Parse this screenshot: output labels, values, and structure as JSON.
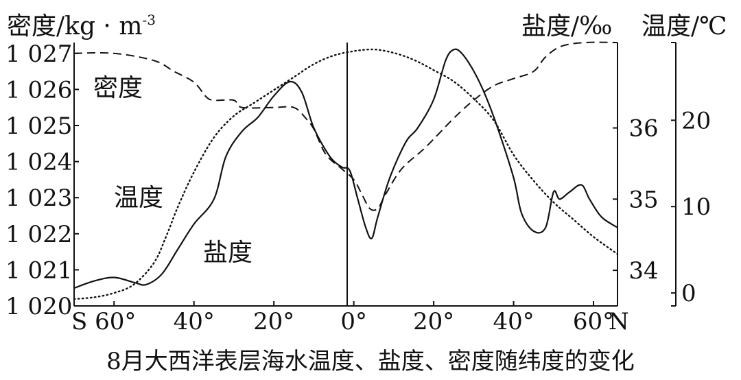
{
  "chart_data": {
    "type": "line",
    "title": "8月大西洋表层海水温度、盐度、密度随纬度的变化",
    "x_axis": {
      "ticks": [
        {
          "value": -60,
          "label": "S 60°"
        },
        {
          "value": -40,
          "label": "40°"
        },
        {
          "value": -20,
          "label": "20°"
        },
        {
          "value": 0,
          "label": "0°"
        },
        {
          "value": 20,
          "label": "20°"
        },
        {
          "value": 40,
          "label": "40°"
        },
        {
          "value": 60,
          "label": "60°"
        }
      ],
      "end_label": "N",
      "range": [
        -70,
        66
      ]
    },
    "axes": {
      "density": {
        "label": "密度/kg · m",
        "label_exp": "-3",
        "range": [
          1020,
          1027.3
        ],
        "ticks": [
          {
            "value": 1027,
            "label": "1 027"
          },
          {
            "value": 1026,
            "label": "1 026"
          },
          {
            "value": 1025,
            "label": "1 025"
          },
          {
            "value": 1024,
            "label": "1 024"
          },
          {
            "value": 1023,
            "label": "1 023"
          },
          {
            "value": 1022,
            "label": "1 022"
          },
          {
            "value": 1021,
            "label": "1 021"
          },
          {
            "value": 1020,
            "label": "1 020"
          }
        ]
      },
      "salinity": {
        "label": "盐度/‰",
        "range": [
          33.5,
          37.2
        ],
        "ticks": [
          {
            "value": 36,
            "label": "36"
          },
          {
            "value": 35,
            "label": "35"
          },
          {
            "value": 34,
            "label": "34"
          }
        ]
      },
      "temperature": {
        "label": "温度/℃",
        "range": [
          -1.5,
          29
        ],
        "ticks": [
          {
            "value": 20,
            "label": "20"
          },
          {
            "value": 10,
            "label": "10"
          },
          {
            "value": 0,
            "label": "0"
          }
        ]
      }
    },
    "series": [
      {
        "name": "密度",
        "axis": "density",
        "style": "dashed",
        "points": [
          [
            -70,
            1027.0
          ],
          [
            -60,
            1027.0
          ],
          [
            -50,
            1026.8
          ],
          [
            -45,
            1026.5
          ],
          [
            -40,
            1026.2
          ],
          [
            -37,
            1025.8
          ],
          [
            -35,
            1025.7
          ],
          [
            -30,
            1025.7
          ],
          [
            -28,
            1025.5
          ],
          [
            -20,
            1025.5
          ],
          [
            -15,
            1025.5
          ],
          [
            -12,
            1025.2
          ],
          [
            -10,
            1024.9
          ],
          [
            -7,
            1024.2
          ],
          [
            -3,
            1023.8
          ],
          [
            0,
            1023.5
          ],
          [
            2,
            1023.1
          ],
          [
            4,
            1022.7
          ],
          [
            6,
            1022.7
          ],
          [
            8,
            1023.1
          ],
          [
            12,
            1023.8
          ],
          [
            18,
            1024.4
          ],
          [
            25,
            1025.2
          ],
          [
            30,
            1025.7
          ],
          [
            35,
            1026.1
          ],
          [
            40,
            1026.3
          ],
          [
            45,
            1026.5
          ],
          [
            48,
            1026.9
          ],
          [
            52,
            1027.2
          ],
          [
            58,
            1027.3
          ],
          [
            66,
            1027.3
          ]
        ]
      },
      {
        "name": "盐度",
        "axis": "salinity",
        "style": "solid",
        "points": [
          [
            -70,
            33.75
          ],
          [
            -65,
            33.85
          ],
          [
            -60,
            33.9
          ],
          [
            -55,
            33.83
          ],
          [
            -52,
            33.8
          ],
          [
            -48,
            33.95
          ],
          [
            -44,
            34.3
          ],
          [
            -40,
            34.65
          ],
          [
            -35,
            35.0
          ],
          [
            -32,
            35.6
          ],
          [
            -28,
            35.95
          ],
          [
            -24,
            36.15
          ],
          [
            -20,
            36.45
          ],
          [
            -16,
            36.65
          ],
          [
            -13,
            36.5
          ],
          [
            -10,
            36.0
          ],
          [
            -6,
            35.6
          ],
          [
            -3,
            35.45
          ],
          [
            -1,
            35.4
          ],
          [
            1,
            35.0
          ],
          [
            3,
            34.6
          ],
          [
            4.5,
            34.45
          ],
          [
            6,
            34.75
          ],
          [
            9,
            35.3
          ],
          [
            13,
            35.8
          ],
          [
            16,
            36.0
          ],
          [
            20,
            36.4
          ],
          [
            23,
            36.95
          ],
          [
            25,
            37.1
          ],
          [
            27,
            37.05
          ],
          [
            30,
            36.8
          ],
          [
            33,
            36.45
          ],
          [
            36,
            36.0
          ],
          [
            40,
            35.3
          ],
          [
            42,
            34.8
          ],
          [
            45,
            34.55
          ],
          [
            48,
            34.6
          ],
          [
            50,
            35.1
          ],
          [
            51.5,
            35.0
          ],
          [
            54,
            35.1
          ],
          [
            57,
            35.2
          ],
          [
            59,
            35.0
          ],
          [
            62,
            34.75
          ],
          [
            66,
            34.6
          ]
        ]
      },
      {
        "name": "温度",
        "axis": "temperature",
        "style": "dotted",
        "points": [
          [
            -70,
            -0.7
          ],
          [
            -65,
            -0.5
          ],
          [
            -60,
            0.0
          ],
          [
            -55,
            1.0
          ],
          [
            -50,
            3.5
          ],
          [
            -47,
            6.5
          ],
          [
            -44,
            10.0
          ],
          [
            -40,
            14.0
          ],
          [
            -35,
            18.0
          ],
          [
            -30,
            20.5
          ],
          [
            -25,
            22.0
          ],
          [
            -20,
            23.5
          ],
          [
            -15,
            25.0
          ],
          [
            -10,
            26.5
          ],
          [
            -5,
            27.5
          ],
          [
            0,
            28.0
          ],
          [
            5,
            28.2
          ],
          [
            10,
            27.8
          ],
          [
            15,
            27.0
          ],
          [
            20,
            25.8
          ],
          [
            25,
            24.5
          ],
          [
            30,
            22.5
          ],
          [
            35,
            20.0
          ],
          [
            40,
            16.0
          ],
          [
            45,
            13.0
          ],
          [
            50,
            10.5
          ],
          [
            55,
            8.5
          ],
          [
            60,
            6.5
          ],
          [
            66,
            4.5
          ]
        ]
      }
    ],
    "annotations": [
      {
        "text": "密度",
        "series": "密度"
      },
      {
        "text": "温度",
        "series": "温度"
      },
      {
        "text": "盐度",
        "series": "盐度"
      }
    ]
  }
}
